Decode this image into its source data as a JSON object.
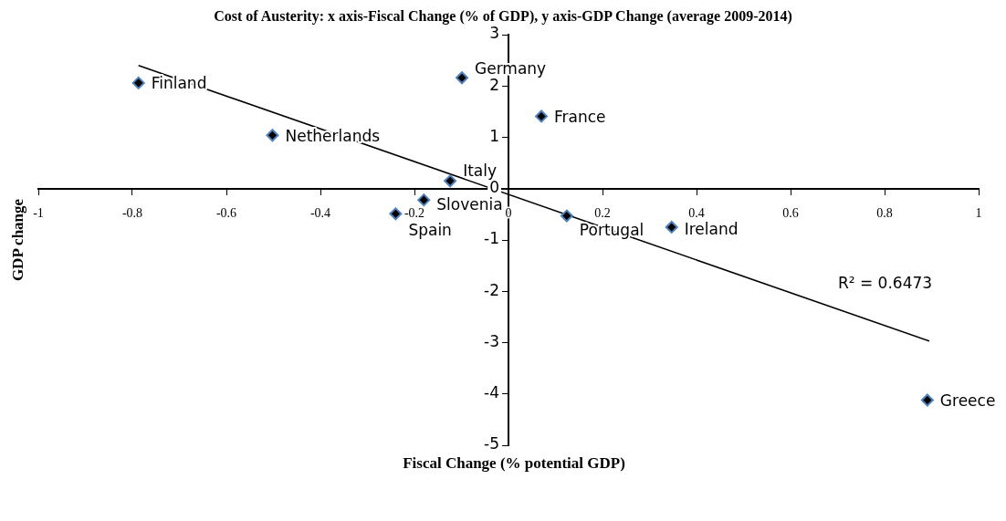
{
  "chart_data": {
    "type": "scatter",
    "title": "Cost of Austerity:  x axis-Fiscal Change (% of GDP), y axis-GDP Change (average 2009-2014)",
    "xlabel": "Fiscal Change (% potential GDP)",
    "ylabel": "GDP change",
    "xlim": [
      -1,
      1
    ],
    "xticks": [
      -1,
      -0.8,
      -0.6,
      -0.4,
      -0.2,
      0,
      0.2,
      0.4,
      0.6,
      0.8,
      1
    ],
    "ylim": [
      -5,
      3
    ],
    "yticks": [
      -5,
      -4,
      -3,
      -2,
      -1,
      0,
      1,
      2,
      3
    ],
    "grid": false,
    "legend": false,
    "marker": "diamond",
    "series": [
      {
        "color": "#000000",
        "x": [
          -0.787,
          -0.099,
          0.07,
          -0.502,
          -0.124,
          -0.18,
          -0.24,
          0.124,
          0.347,
          0.891
        ],
        "values": [
          2.06,
          2.16,
          1.41,
          1.04,
          0.15,
          -0.22,
          -0.49,
          -0.53,
          -0.75,
          -4.12
        ]
      },
      {
        "type": "line",
        "color": "#000000",
        "marker": "none",
        "line_style": "solid",
        "x": [
          -0.787,
          0.895
        ],
        "values": [
          2.4,
          -2.97
        ]
      }
    ],
    "annotations": [
      {
        "text": "Finland",
        "x": -0.787,
        "y": 2.06
      },
      {
        "text": "Germany",
        "x": -0.099,
        "y": 2.16
      },
      {
        "text": "France",
        "x": 0.07,
        "y": 1.41
      },
      {
        "text": "Netherlands",
        "x": -0.502,
        "y": 1.04
      },
      {
        "text": "Italy",
        "x": -0.124,
        "y": 0.15
      },
      {
        "text": "Slovenia",
        "x": -0.18,
        "y": -0.22
      },
      {
        "text": "Spain",
        "x": -0.24,
        "y": -0.49
      },
      {
        "text": "Portugal",
        "x": 0.124,
        "y": -0.53
      },
      {
        "text": "Ireland",
        "x": 0.347,
        "y": -0.75
      },
      {
        "text": "Greece",
        "x": 0.891,
        "y": -4.12
      },
      "R² = 0.6473"
    ]
  }
}
